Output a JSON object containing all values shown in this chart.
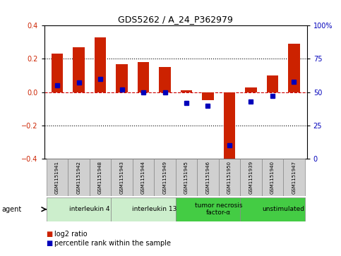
{
  "title": "GDS5262 / A_24_P362979",
  "samples": [
    "GSM1151941",
    "GSM1151942",
    "GSM1151948",
    "GSM1151943",
    "GSM1151944",
    "GSM1151949",
    "GSM1151945",
    "GSM1151946",
    "GSM1151950",
    "GSM1151939",
    "GSM1151940",
    "GSM1151947"
  ],
  "log2_ratio": [
    0.23,
    0.27,
    0.33,
    0.17,
    0.18,
    0.15,
    0.01,
    -0.05,
    -0.43,
    0.03,
    0.1,
    0.29
  ],
  "percentile_rank": [
    55,
    57,
    60,
    52,
    50,
    50,
    42,
    40,
    10,
    43,
    47,
    58
  ],
  "groups": [
    {
      "label": "interleukin 4",
      "start": 0,
      "end": 3,
      "color": "#cceecc"
    },
    {
      "label": "interleukin 13",
      "start": 3,
      "end": 6,
      "color": "#cceecc"
    },
    {
      "label": "tumor necrosis\nfactor-α",
      "start": 6,
      "end": 9,
      "color": "#44cc44"
    },
    {
      "label": "unstimulated",
      "start": 9,
      "end": 12,
      "color": "#44cc44"
    }
  ],
  "ylim": [
    -0.4,
    0.4
  ],
  "y2lim": [
    0,
    100
  ],
  "y_ticks": [
    -0.4,
    -0.2,
    0.0,
    0.2,
    0.4
  ],
  "y2_ticks": [
    0,
    25,
    50,
    75,
    100
  ],
  "bar_color": "#cc2200",
  "pct_color": "#0000bb",
  "background_color": "#ffffff",
  "dashed_line_y": [
    0.2,
    -0.2
  ],
  "zero_line_color": "#cc0000",
  "agent_label": "agent",
  "bar_width": 0.55,
  "pct_marker_size": 5
}
